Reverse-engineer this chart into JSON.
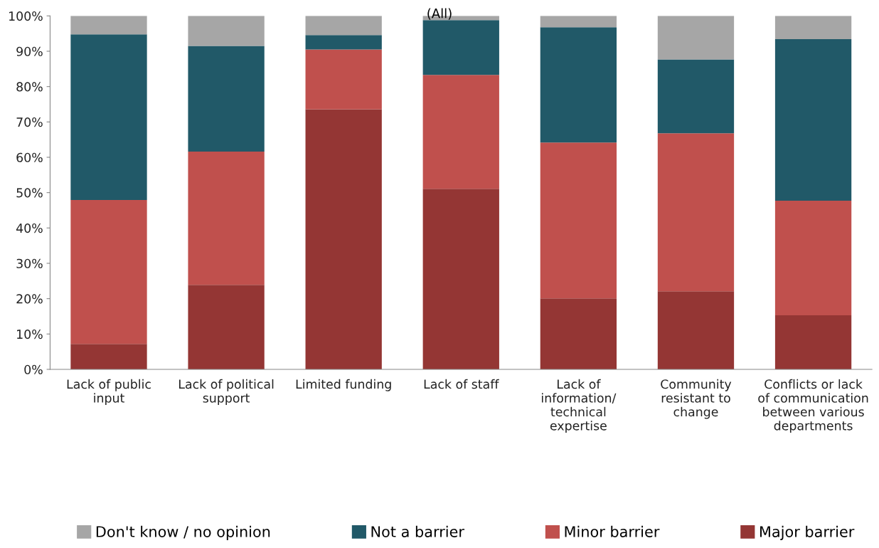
{
  "chart_data": {
    "type": "bar",
    "title": "(All)",
    "stacked": true,
    "legend": "bottom",
    "grid": false,
    "categories": [
      "Lack of public input",
      "Lack of political support",
      "Limited funding",
      "Lack of staff",
      "Lack of information/ technical expertise",
      "Community resistant to change",
      "Conflicts or lack of communication between various departments"
    ],
    "series": [
      {
        "name": "Major barrier",
        "color": "#943634",
        "values": [
          7.2,
          23.9,
          73.6,
          51.1,
          20.1,
          22.1,
          15.3
        ]
      },
      {
        "name": "Minor barrier",
        "color": "#c0504d",
        "values": [
          40.7,
          37.7,
          16.9,
          32.2,
          44.1,
          44.7,
          32.4
        ]
      },
      {
        "name": "Not a barrier",
        "color": "#215968",
        "values": [
          46.9,
          29.9,
          4.1,
          15.5,
          32.6,
          20.9,
          45.7
        ]
      },
      {
        "name": "Don't know / no opinion",
        "color": "#a6a6a6",
        "values": [
          5.2,
          8.5,
          5.4,
          1.2,
          3.2,
          12.3,
          6.6
        ]
      }
    ],
    "ylim": [
      0,
      100
    ],
    "yticks": [
      {
        "value": 0,
        "label": "0%"
      },
      {
        "value": 10,
        "label": "10%"
      },
      {
        "value": 20,
        "label": "20%"
      },
      {
        "value": 30,
        "label": "30%"
      },
      {
        "value": 40,
        "label": "40%"
      },
      {
        "value": 50,
        "label": "50%"
      },
      {
        "value": 60,
        "label": "60%"
      },
      {
        "value": 70,
        "label": "70%"
      },
      {
        "value": 80,
        "label": "80%"
      },
      {
        "value": 90,
        "label": "90%"
      },
      {
        "value": 100,
        "label": "100%"
      }
    ]
  }
}
